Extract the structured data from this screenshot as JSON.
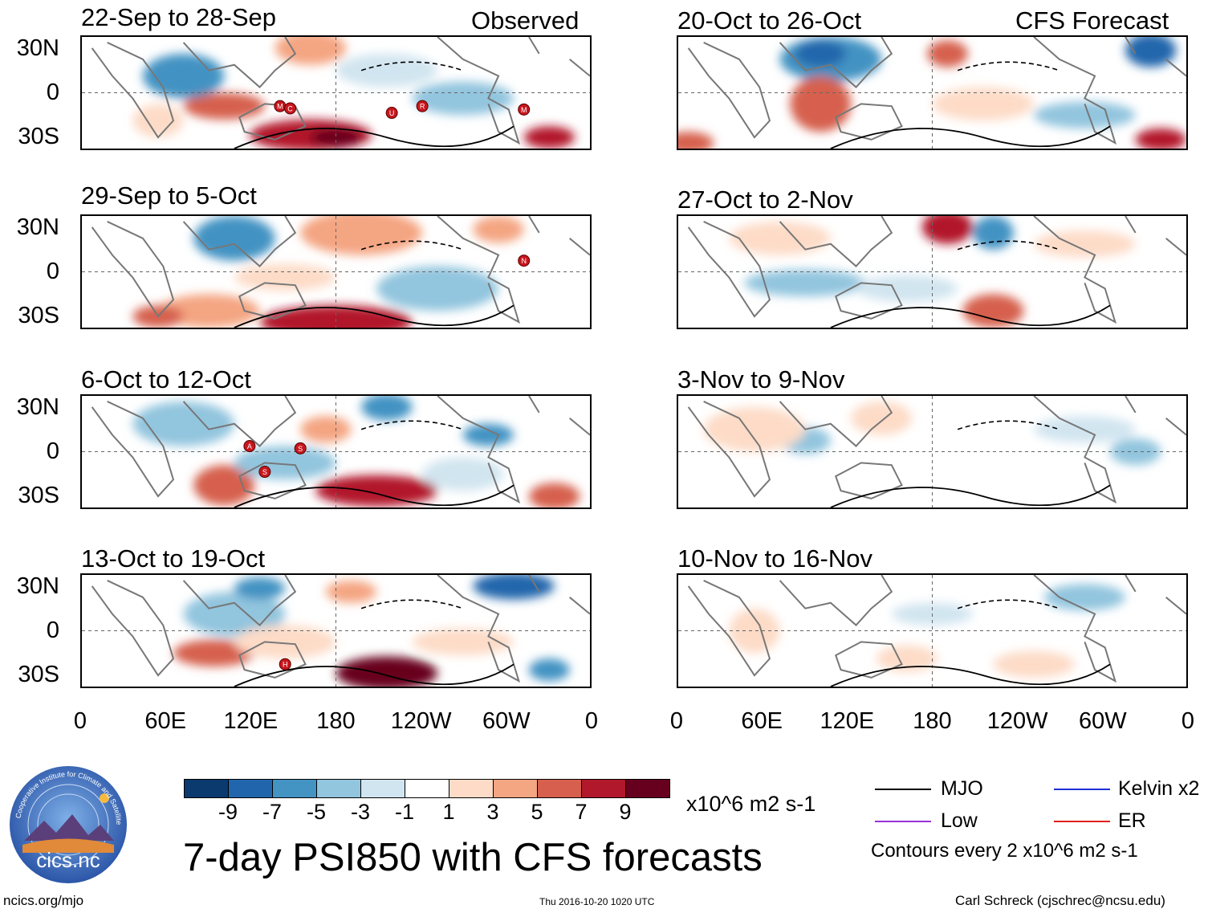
{
  "columns": {
    "left_heading": "Observed",
    "right_heading": "CFS Forecast"
  },
  "panels": {
    "observed": [
      {
        "title": "22-Sep to 28-Sep"
      },
      {
        "title": "29-Sep to 5-Oct"
      },
      {
        "title": "6-Oct to 12-Oct"
      },
      {
        "title": "13-Oct to 19-Oct"
      }
    ],
    "forecast": [
      {
        "title": "20-Oct to 26-Oct"
      },
      {
        "title": "27-Oct to 2-Nov"
      },
      {
        "title": "3-Nov to 9-Nov"
      },
      {
        "title": "10-Nov to 16-Nov"
      }
    ]
  },
  "axes": {
    "lat_labels": [
      "30N",
      "0",
      "30S"
    ],
    "lon_labels": [
      "0",
      "60E",
      "120E",
      "180",
      "120W",
      "60W",
      "0"
    ]
  },
  "storm_markers": {
    "p1": [
      "M",
      "C",
      "U",
      "R",
      "M"
    ],
    "p2": [
      "N"
    ],
    "p3": [
      "A",
      "S",
      "S"
    ],
    "p4": [
      "H"
    ]
  },
  "colorbar": {
    "labels": [
      "-9",
      "-7",
      "-5",
      "-3",
      "-1",
      "1",
      "3",
      "5",
      "7",
      "9"
    ],
    "colors": [
      "#0a3a6e",
      "#2166ac",
      "#4393c3",
      "#92c5de",
      "#d1e5f0",
      "#ffffff",
      "#fddbc7",
      "#f4a582",
      "#d6604d",
      "#b2182b",
      "#67001f"
    ],
    "units": "x10^6 m2 s-1"
  },
  "title": "7-day PSI850 with CFS forecasts",
  "logo_text": "cics.nc",
  "logo_ring_text": "Cooperative Institute for Climate and Satellites",
  "legend": {
    "mjo": "MJO",
    "kelvin": "Kelvin x2",
    "low": "Low",
    "er": "ER",
    "contours": "Contours every 2 x10^6 m2 s-1",
    "colors": {
      "mjo": "#000000",
      "kelvin": "#1f2fd6",
      "low": "#9b30d9",
      "er": "#e0201b"
    }
  },
  "footer": {
    "url": "ncics.org/mjo",
    "timestamp": "Thu 2016-10-20 1020 UTC",
    "author": "Carl Schreck (cjschrec@ncsu.edu)"
  }
}
